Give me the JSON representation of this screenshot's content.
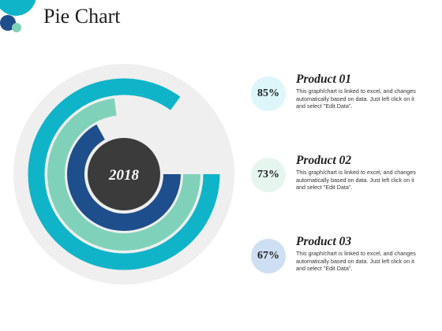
{
  "page": {
    "title": "Pie Chart"
  },
  "colors": {
    "outer_ring": "#0fb4c9",
    "middle_ring": "#7fd2b9",
    "inner_ring": "#1e4e8c",
    "center": "#3b3b3b",
    "track": "#efefef",
    "badge_1": "#dcf6fa",
    "badge_2": "#e6f6ef",
    "badge_3": "#cfdff3"
  },
  "chart_data": {
    "type": "pie",
    "center_label": "2018",
    "series": [
      {
        "name": "Product 01",
        "value": 85,
        "value_label": "85%",
        "color": "#0fb4c9"
      },
      {
        "name": "Product 02",
        "value": 73,
        "value_label": "73%",
        "color": "#7fd2b9"
      },
      {
        "name": "Product 03",
        "value": 67,
        "value_label": "67%",
        "color": "#1e4e8c"
      }
    ]
  },
  "legend": [
    {
      "percent": "85%",
      "title": "Product 01",
      "description": "This graph/chart is linked to excel, and changes automatically based on data. Just left click on it and select \"Edit Data\"."
    },
    {
      "percent": "73%",
      "title": "Product 02",
      "description": "This graph/chart is linked to excel, and changes automatically based on data. Just left click on it and select \"Edit Data\"."
    },
    {
      "percent": "67%",
      "title": "Product 03",
      "description": "This graph/chart is linked to excel, and changes automatically based on data. Just left click on it and select \"Edit Data\"."
    }
  ]
}
